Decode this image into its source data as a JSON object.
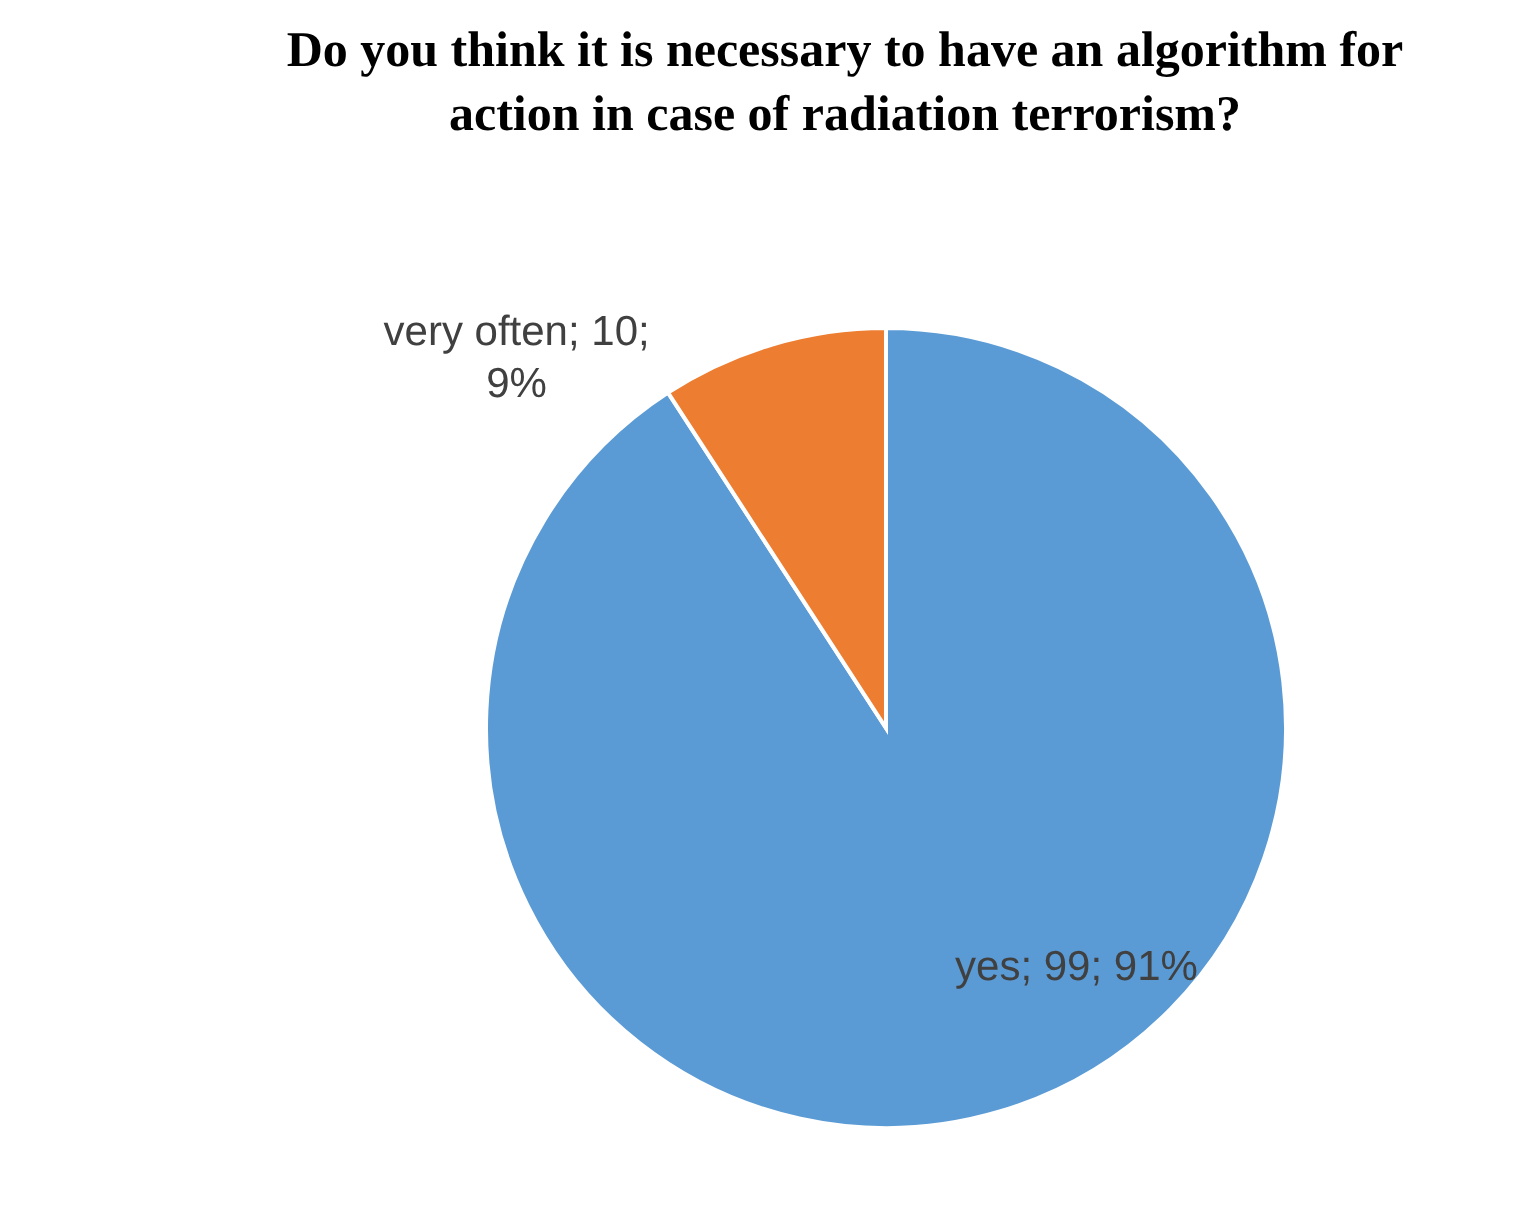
{
  "chart_data": {
    "type": "pie",
    "title": "Do you think it is necessary to have an algorithm for action in case of radiation terrorism?",
    "categories": [
      "yes",
      "very often"
    ],
    "values": [
      99,
      10
    ],
    "colors": [
      "#5b9bd5",
      "#ed7d31"
    ],
    "value_labels": [
      "99; 91%",
      "10; 9%"
    ]
  }
}
